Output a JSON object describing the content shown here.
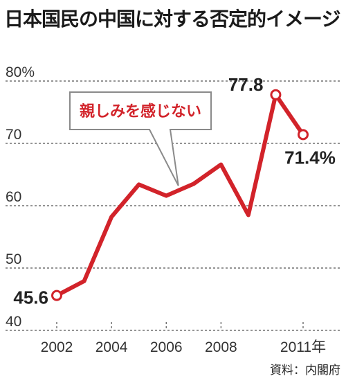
{
  "title": "日本国民の中国に対する否定的イメージ",
  "source": "資料：内閣府",
  "chart_data": {
    "type": "line",
    "title": "日本国民の中国に対する否定的イメージ",
    "x": [
      2002,
      2003,
      2004,
      2005,
      2006,
      2007,
      2008,
      2009,
      2010,
      2011
    ],
    "series": [
      {
        "name": "親しみを感じない",
        "values": [
          45.6,
          47.9,
          58.2,
          63.4,
          61.6,
          63.5,
          66.6,
          58.5,
          77.8,
          71.4
        ]
      }
    ],
    "y_tick_labels": [
      "80%",
      "70",
      "60",
      "50",
      "40"
    ],
    "y_ticks": [
      80,
      70,
      60,
      50,
      40
    ],
    "x_tick_labels": [
      "2002",
      "2004",
      "2006",
      "2008",
      "2011年"
    ],
    "x_ticks": [
      2002,
      2004,
      2006,
      2008,
      2011
    ],
    "ylim": [
      38,
      80
    ],
    "xlim": [
      2002,
      2011
    ],
    "data_labels": [
      {
        "x": 2002,
        "text": "45.6"
      },
      {
        "x": 2010,
        "text": "77.8"
      },
      {
        "x": 2011,
        "text": "71.4%"
      }
    ],
    "annotation": {
      "text": "親しみを感じない",
      "points_to_x": 2007
    },
    "grid": true,
    "line_color": "#d2232a",
    "grid_color": "#555555"
  }
}
